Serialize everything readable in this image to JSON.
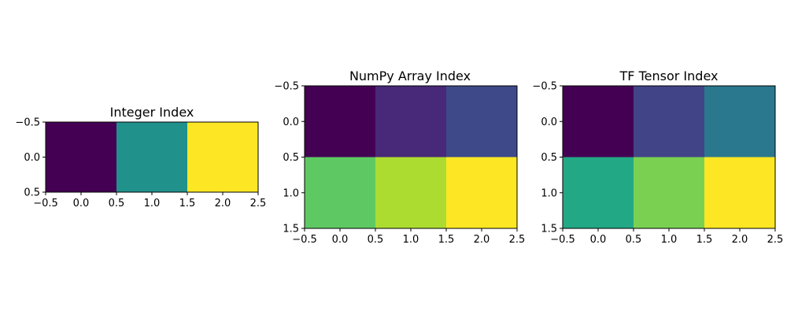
{
  "figure": {
    "background": "#ffffff",
    "colormap": "viridis"
  },
  "chart_data": [
    {
      "type": "heatmap",
      "title": "Integer Index",
      "xlabel": "",
      "ylabel": "",
      "rows": 1,
      "cols": 3,
      "xlim": [
        -0.5,
        2.5
      ],
      "ylim": [
        0.5,
        -0.5
      ],
      "x_ticks": [
        -0.5,
        0.0,
        0.5,
        1.0,
        1.5,
        2.0,
        2.5
      ],
      "x_tick_labels": [
        "−0.5",
        "0.0",
        "0.5",
        "1.0",
        "1.5",
        "2.0",
        "2.5"
      ],
      "y_ticks": [
        -0.5,
        0.0,
        0.5
      ],
      "y_tick_labels": [
        "−0.5",
        "0.0",
        "0.5"
      ],
      "cell_colors": [
        [
          "#440154",
          "#21918c",
          "#fde725"
        ]
      ],
      "grid": false
    },
    {
      "type": "heatmap",
      "title": "NumPy Array Index",
      "xlabel": "",
      "ylabel": "",
      "rows": 2,
      "cols": 3,
      "xlim": [
        -0.5,
        2.5
      ],
      "ylim": [
        1.5,
        -0.5
      ],
      "x_ticks": [
        -0.5,
        0.0,
        0.5,
        1.0,
        1.5,
        2.0,
        2.5
      ],
      "x_tick_labels": [
        "−0.5",
        "0.0",
        "0.5",
        "1.0",
        "1.5",
        "2.0",
        "2.5"
      ],
      "y_ticks": [
        -0.5,
        0.0,
        0.5,
        1.0,
        1.5
      ],
      "y_tick_labels": [
        "−0.5",
        "0.0",
        "0.5",
        "1.0",
        "1.5"
      ],
      "cell_colors": [
        [
          "#440154",
          "#482878",
          "#3e4989"
        ],
        [
          "#5ec962",
          "#addc30",
          "#fde725"
        ]
      ],
      "grid": false
    },
    {
      "type": "heatmap",
      "title": "TF Tensor Index",
      "xlabel": "",
      "ylabel": "",
      "rows": 2,
      "cols": 3,
      "xlim": [
        -0.5,
        2.5
      ],
      "ylim": [
        1.5,
        -0.5
      ],
      "x_ticks": [
        -0.5,
        0.0,
        0.5,
        1.0,
        1.5,
        2.0,
        2.5
      ],
      "x_tick_labels": [
        "−0.5",
        "0.0",
        "0.5",
        "1.0",
        "1.5",
        "2.0",
        "2.5"
      ],
      "y_ticks": [
        -0.5,
        0.0,
        0.5,
        1.0,
        1.5
      ],
      "y_tick_labels": [
        "−0.5",
        "0.0",
        "0.5",
        "1.0",
        "1.5"
      ],
      "cell_colors": [
        [
          "#440154",
          "#414487",
          "#2a788e"
        ],
        [
          "#22a884",
          "#7ad151",
          "#fde725"
        ]
      ],
      "grid": false
    }
  ]
}
